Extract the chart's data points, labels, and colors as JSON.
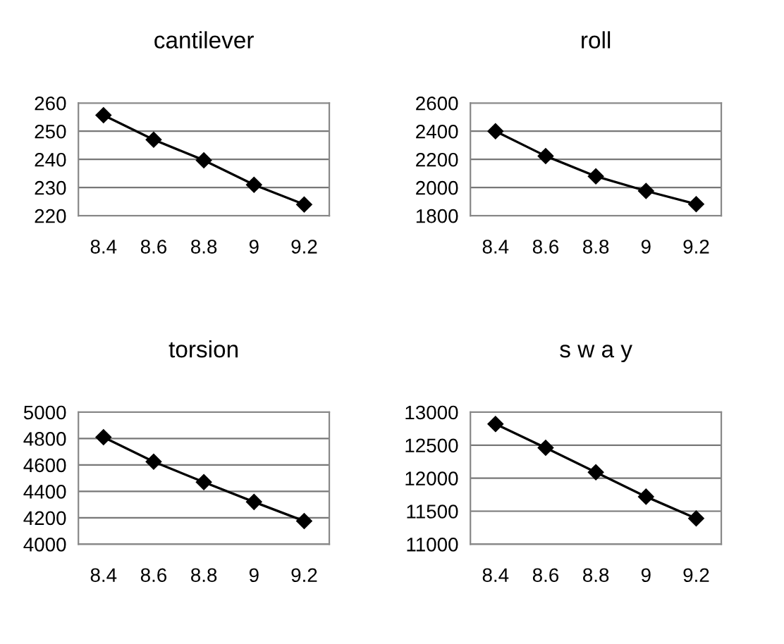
{
  "chart_data": [
    {
      "type": "line",
      "title": "cantilever",
      "categories": [
        "8.4",
        "8.6",
        "8.8",
        "9",
        "9.2"
      ],
      "series": [
        {
          "color": "#000000",
          "values": [
            255.7,
            247,
            239.7,
            231,
            224
          ]
        }
      ],
      "ylim": [
        220,
        260
      ],
      "yticks": [
        220,
        230,
        240,
        250,
        260
      ],
      "grid": "y",
      "marker": "diamond",
      "line_style": "solid",
      "legend": false
    },
    {
      "type": "line",
      "title": "roll",
      "categories": [
        "8.4",
        "8.6",
        "8.8",
        "9",
        "9.2"
      ],
      "series": [
        {
          "color": "#000000",
          "values": [
            2400,
            2224,
            2080,
            1976,
            1882
          ]
        }
      ],
      "ylim": [
        1800,
        2600
      ],
      "yticks": [
        1800,
        2000,
        2200,
        2400,
        2600
      ],
      "grid": "y",
      "marker": "diamond",
      "line_style": "solid",
      "legend": false
    },
    {
      "type": "line",
      "title": "torsion",
      "categories": [
        "8.4",
        "8.6",
        "8.8",
        "9",
        "9.2"
      ],
      "series": [
        {
          "color": "#000000",
          "values": [
            4810,
            4625,
            4470,
            4320,
            4175
          ]
        }
      ],
      "ylim": [
        4000,
        5000
      ],
      "yticks": [
        4000,
        4200,
        4400,
        4600,
        4800,
        5000
      ],
      "grid": "y",
      "marker": "diamond",
      "line_style": "solid",
      "legend": false
    },
    {
      "type": "line",
      "title": "s w a y",
      "categories": [
        "8.4",
        "8.6",
        "8.8",
        "9",
        "9.2"
      ],
      "series": [
        {
          "color": "#000000",
          "values": [
            12820,
            12460,
            12090,
            11720,
            11390
          ]
        }
      ],
      "ylim": [
        11000,
        13000
      ],
      "yticks": [
        11000,
        11500,
        12000,
        12500,
        13000
      ],
      "grid": "y",
      "marker": "diamond",
      "line_style": "solid",
      "legend": false
    }
  ]
}
